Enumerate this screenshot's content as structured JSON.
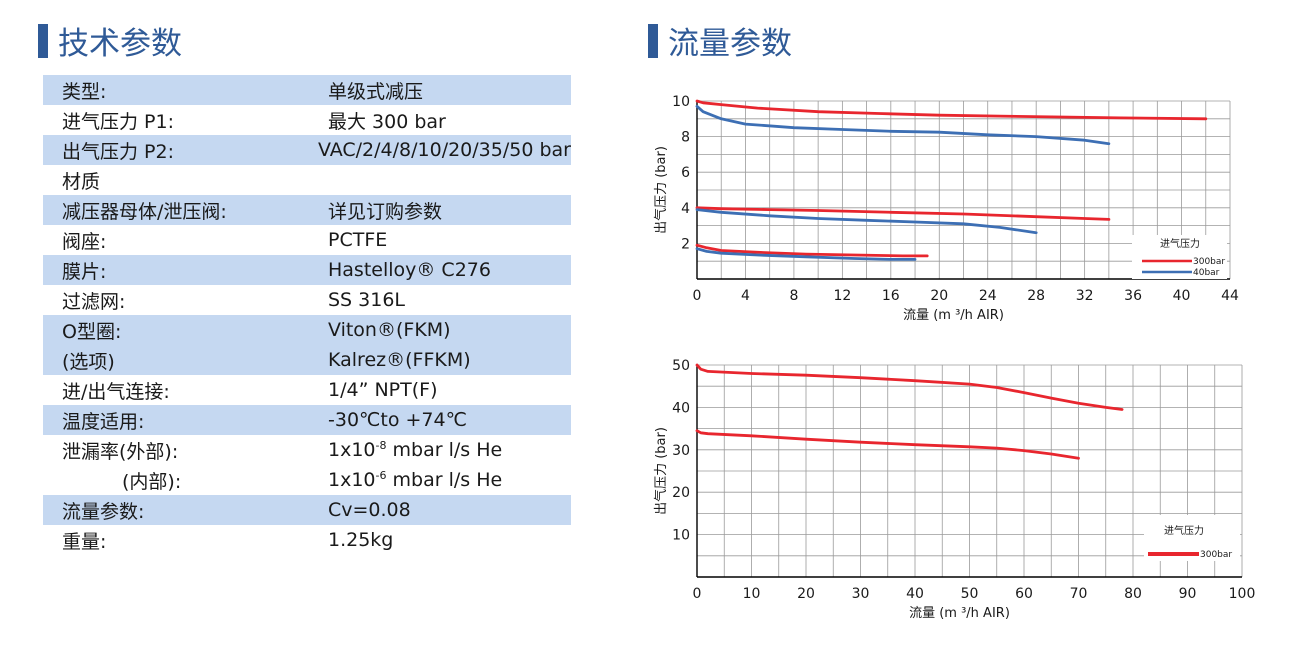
{
  "left_title": "技术参数",
  "right_title": "流量参数",
  "spec_rows": [
    {
      "key": "类型:",
      "value": "单级式减压",
      "shade": true
    },
    {
      "key": "进气压力 P1:",
      "value": "最大 300 bar",
      "shade": false
    },
    {
      "key": "出气压力 P2:",
      "value": "VAC/2/4/8/10/20/35/50 bar",
      "shade": true
    },
    {
      "key": "材质",
      "value": "",
      "shade": false
    },
    {
      "key": "减压器母体/泄压阀:",
      "value": "详见订购参数",
      "shade": true
    },
    {
      "key": "阀座:",
      "value": "PCTFE",
      "shade": false
    },
    {
      "key": "膜片:",
      "value": "Hastelloy® C276",
      "shade": true
    },
    {
      "key": "过滤网:",
      "value": "SS 316L",
      "shade": false
    },
    {
      "key": "O型圈:",
      "value": "Viton®(FKM)",
      "shade": true
    },
    {
      "key": "(选项)",
      "value": "Kalrez®(FFKM)",
      "shade": true
    },
    {
      "key": "进/出气连接:",
      "value": "1/4”  NPT(F)",
      "shade": false
    },
    {
      "key": "温度适用:",
      "value": "-30℃to +74℃",
      "shade": true
    },
    {
      "key": "泄漏率(外部):",
      "value": "1x10",
      "value_sup": "-8",
      "value_tail": " mbar l/s He",
      "shade": false
    },
    {
      "key": "(内部):",
      "value": "1x10",
      "value_sup": "-6",
      "value_tail": " mbar l/s He",
      "shade": false,
      "indent": true
    },
    {
      "key": "流量参数:",
      "value": "Cv=0.08",
      "shade": true
    },
    {
      "key": "重量:",
      "value": "1.25kg",
      "shade": false
    }
  ],
  "chart_data": [
    {
      "type": "line",
      "xlabel": "流量 (m ³/h AIR)",
      "ylabel": "出气压力 (bar)",
      "xlim": [
        0,
        44
      ],
      "ylim": [
        0,
        10
      ],
      "x_ticks": [
        0,
        4,
        8,
        12,
        16,
        20,
        24,
        28,
        32,
        36,
        40,
        44
      ],
      "y_ticks": [
        2,
        4,
        6,
        8,
        10
      ],
      "grid": true,
      "legend_position": "bottom-right",
      "legend_title": "进气压力",
      "legend": [
        {
          "name": "300bar",
          "color": "#e8262e"
        },
        {
          "name": "40bar",
          "color": "#3d6fb4"
        }
      ],
      "series": [
        {
          "name": "300bar",
          "color": "#e8262e",
          "points": [
            [
              0,
              10.0
            ],
            [
              0.5,
              9.9
            ],
            [
              2,
              9.8
            ],
            [
              5,
              9.6
            ],
            [
              10,
              9.4
            ],
            [
              15,
              9.3
            ],
            [
              20,
              9.2
            ],
            [
              25,
              9.15
            ],
            [
              30,
              9.1
            ],
            [
              35,
              9.05
            ],
            [
              42,
              9.0
            ]
          ]
        },
        {
          "name": "40bar",
          "color": "#3d6fb4",
          "points": [
            [
              0,
              9.7
            ],
            [
              0.5,
              9.4
            ],
            [
              2,
              9.0
            ],
            [
              4,
              8.7
            ],
            [
              8,
              8.5
            ],
            [
              12,
              8.4
            ],
            [
              16,
              8.3
            ],
            [
              20,
              8.25
            ],
            [
              24,
              8.1
            ],
            [
              28,
              8.0
            ],
            [
              32,
              7.8
            ],
            [
              34,
              7.6
            ]
          ]
        },
        {
          "name": "300bar",
          "color": "#e8262e",
          "points": [
            [
              0,
              4.0
            ],
            [
              2,
              3.95
            ],
            [
              6,
              3.9
            ],
            [
              10,
              3.85
            ],
            [
              16,
              3.75
            ],
            [
              22,
              3.65
            ],
            [
              28,
              3.5
            ],
            [
              32,
              3.4
            ],
            [
              34,
              3.35
            ]
          ]
        },
        {
          "name": "40bar",
          "color": "#3d6fb4",
          "points": [
            [
              0,
              3.9
            ],
            [
              2,
              3.75
            ],
            [
              6,
              3.55
            ],
            [
              10,
              3.4
            ],
            [
              14,
              3.3
            ],
            [
              18,
              3.2
            ],
            [
              22,
              3.1
            ],
            [
              25,
              2.9
            ],
            [
              28,
              2.6
            ]
          ]
        },
        {
          "name": "300bar",
          "color": "#e8262e",
          "points": [
            [
              0,
              1.9
            ],
            [
              0.8,
              1.75
            ],
            [
              2,
              1.6
            ],
            [
              5,
              1.5
            ],
            [
              9,
              1.4
            ],
            [
              13,
              1.35
            ],
            [
              17,
              1.3
            ],
            [
              19,
              1.3
            ]
          ]
        },
        {
          "name": "40bar",
          "color": "#3d6fb4",
          "points": [
            [
              0,
              1.7
            ],
            [
              0.8,
              1.55
            ],
            [
              2,
              1.45
            ],
            [
              5,
              1.35
            ],
            [
              9,
              1.25
            ],
            [
              13,
              1.15
            ],
            [
              16,
              1.1
            ],
            [
              18,
              1.1
            ]
          ]
        }
      ]
    },
    {
      "type": "line",
      "xlabel": "流量 (m ³/h AIR)",
      "ylabel": "出气压力 (bar)",
      "xlim": [
        0,
        100
      ],
      "ylim": [
        0,
        50
      ],
      "x_ticks": [
        0,
        10,
        20,
        30,
        40,
        50,
        60,
        70,
        80,
        90,
        100
      ],
      "y_ticks": [
        10,
        20,
        30,
        40,
        50
      ],
      "grid": true,
      "legend_position": "bottom-right",
      "legend_title": "进气压力",
      "legend": [
        {
          "name": "300bar",
          "color": "#e8262e"
        }
      ],
      "series": [
        {
          "name": "300bar",
          "color": "#e8262e",
          "points": [
            [
              0,
              50
            ],
            [
              0.7,
              49
            ],
            [
              2,
              48.5
            ],
            [
              10,
              48
            ],
            [
              20,
              47.6
            ],
            [
              30,
              47
            ],
            [
              40,
              46.3
            ],
            [
              50,
              45.5
            ],
            [
              55,
              44.7
            ],
            [
              60,
              43.5
            ],
            [
              65,
              42.2
            ],
            [
              70,
              41
            ],
            [
              75,
              40
            ],
            [
              78,
              39.5
            ]
          ]
        },
        {
          "name": "300bar",
          "color": "#e8262e",
          "points": [
            [
              0,
              34.5
            ],
            [
              0.7,
              34
            ],
            [
              2,
              33.8
            ],
            [
              10,
              33.3
            ],
            [
              20,
              32.5
            ],
            [
              30,
              31.8
            ],
            [
              40,
              31.2
            ],
            [
              50,
              30.7
            ],
            [
              55,
              30.4
            ],
            [
              60,
              29.8
            ],
            [
              65,
              29
            ],
            [
              70,
              28
            ]
          ]
        }
      ]
    }
  ]
}
